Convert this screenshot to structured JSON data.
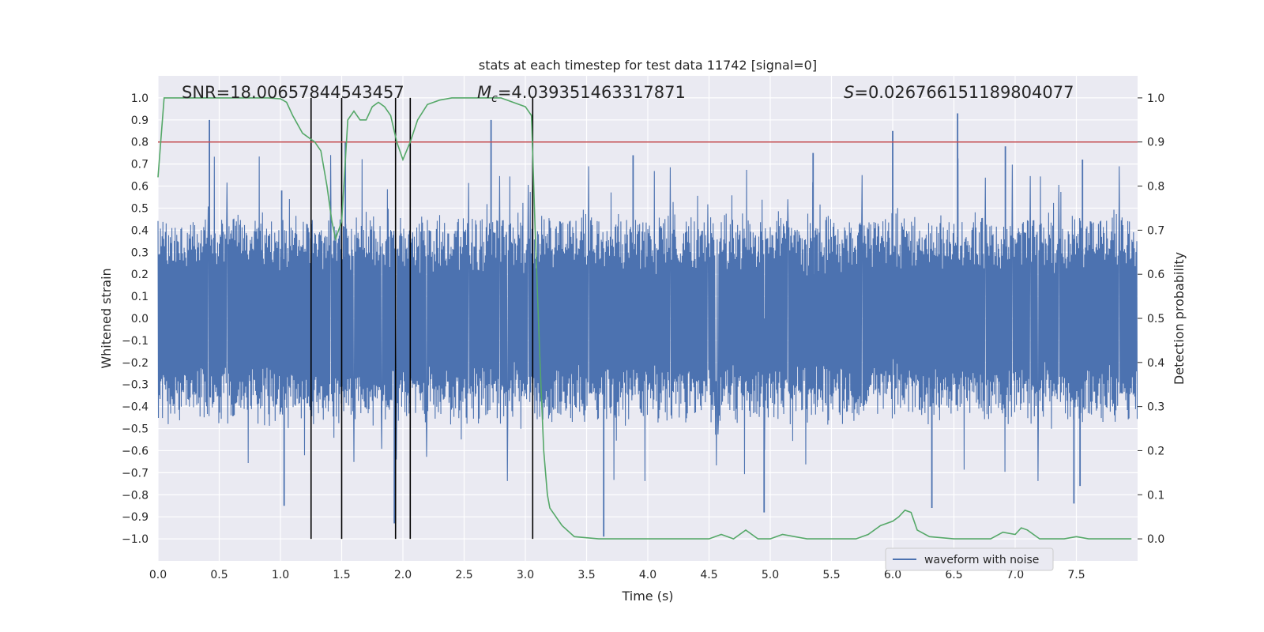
{
  "chart_data": {
    "type": "line",
    "title": "stats at each timestep for test data 11742 [signal=0]",
    "xlabel": "Time (s)",
    "ylabel": "Whitened strain",
    "y2label": "Detection probability",
    "xlim": [
      0.0,
      8.0
    ],
    "ylim": [
      -1.1,
      1.1
    ],
    "y2lim": [
      -0.05,
      1.05
    ],
    "xticks": [
      "0.0",
      "0.5",
      "1.0",
      "1.5",
      "2.0",
      "2.5",
      "3.0",
      "3.5",
      "4.0",
      "4.5",
      "5.0",
      "5.5",
      "6.0",
      "6.5",
      "7.0",
      "7.5"
    ],
    "yticks": [
      "1.0",
      "0.9",
      "0.8",
      "0.7",
      "0.6",
      "0.5",
      "0.4",
      "0.3",
      "0.2",
      "0.1",
      "0.0",
      "-0.1",
      "-0.2",
      "-0.3",
      "-0.4",
      "-0.5",
      "-0.6",
      "-0.7",
      "-0.8",
      "-0.9",
      "-1.0"
    ],
    "y2ticks": [
      "1.0",
      "0.9",
      "0.8",
      "0.7",
      "0.6",
      "0.5",
      "0.4",
      "0.3",
      "0.2",
      "0.1",
      "0.0"
    ],
    "threshold": 0.9,
    "threshold_color": "#c44e52",
    "event_lines_x": [
      1.25,
      1.5,
      1.94,
      2.06,
      3.06
    ],
    "annotations": {
      "snr": "SNR=18.00657844543457",
      "mc_symbol": "M",
      "mc_sub": "c",
      "mc_value": "=4.039351463317871",
      "s_symbol": "S",
      "s_value": "=0.026766151189804077"
    },
    "legend": {
      "label": "waveform with noise",
      "position": "lower-right"
    },
    "series": [
      {
        "name": "waveform with noise",
        "axis": "left",
        "color": "#4c72b0",
        "description": "whitened noise, amplitude envelope approx +/-0.5 with spikes to +/-0.9",
        "envelope": 0.45,
        "spikes_up": [
          [
            0.42,
            0.9
          ],
          [
            1.01,
            0.58
          ],
          [
            1.53,
            0.8
          ],
          [
            2.72,
            0.9
          ],
          [
            3.88,
            0.74
          ],
          [
            5.35,
            0.75
          ],
          [
            6.0,
            0.85
          ],
          [
            6.53,
            0.93
          ],
          [
            6.92,
            0.78
          ],
          [
            7.55,
            0.72
          ]
        ],
        "spikes_down": [
          [
            1.03,
            -0.85
          ],
          [
            1.93,
            -0.93
          ],
          [
            3.64,
            -0.99
          ],
          [
            4.95,
            -0.88
          ],
          [
            6.32,
            -0.86
          ],
          [
            7.48,
            -0.84
          ],
          [
            7.53,
            -0.76
          ]
        ]
      },
      {
        "name": "detection probability",
        "axis": "right",
        "color": "#55a868",
        "x": [
          0.0,
          0.05,
          0.1,
          0.3,
          0.6,
          0.9,
          1.0,
          1.05,
          1.1,
          1.18,
          1.28,
          1.33,
          1.38,
          1.42,
          1.45,
          1.5,
          1.55,
          1.6,
          1.65,
          1.7,
          1.75,
          1.8,
          1.85,
          1.9,
          1.95,
          2.0,
          2.06,
          2.12,
          2.2,
          2.3,
          2.4,
          2.5,
          2.65,
          2.8,
          2.9,
          3.0,
          3.05,
          3.08,
          3.12,
          3.15,
          3.18,
          3.2,
          3.3,
          3.4,
          3.6,
          3.8,
          4.0,
          4.3,
          4.5,
          4.6,
          4.7,
          4.8,
          4.9,
          5.0,
          5.1,
          5.3,
          5.5,
          5.7,
          5.8,
          5.9,
          6.0,
          6.05,
          6.1,
          6.15,
          6.2,
          6.3,
          6.5,
          6.8,
          6.9,
          7.0,
          7.05,
          7.1,
          7.2,
          7.4,
          7.5,
          7.6,
          7.8,
          7.95
        ],
        "y": [
          0.82,
          1.0,
          1.0,
          1.0,
          1.0,
          1.0,
          0.998,
          0.99,
          0.96,
          0.92,
          0.9,
          0.88,
          0.8,
          0.72,
          0.68,
          0.72,
          0.95,
          0.97,
          0.95,
          0.95,
          0.98,
          0.99,
          0.98,
          0.96,
          0.9,
          0.86,
          0.9,
          0.95,
          0.985,
          0.995,
          1.0,
          1.0,
          1.0,
          1.0,
          0.99,
          0.98,
          0.96,
          0.7,
          0.4,
          0.2,
          0.1,
          0.07,
          0.03,
          0.005,
          0.0,
          0.0,
          0.0,
          0.0,
          0.0,
          0.01,
          0.0,
          0.02,
          0.0,
          0.0,
          0.01,
          0.0,
          0.0,
          0.0,
          0.01,
          0.03,
          0.04,
          0.05,
          0.065,
          0.06,
          0.02,
          0.005,
          0.0,
          0.0,
          0.015,
          0.01,
          0.025,
          0.02,
          0.0,
          0.0,
          0.005,
          0.0,
          0.0,
          0.0
        ]
      }
    ]
  }
}
